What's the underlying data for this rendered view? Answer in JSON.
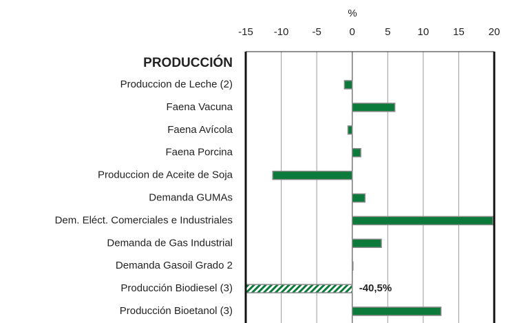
{
  "chart_data": {
    "type": "hbar",
    "x_label": "%",
    "section_label": "PRODUCCIÓN",
    "categories": [
      "Produccion de Leche (2)",
      "Faena Vacuna",
      "Faena Avícola",
      "Faena Porcina",
      "Produccion de Aceite de Soja",
      "Demanda  GUMAs",
      "Dem. Eléct. Comerciales e Industriales",
      "Demanda de Gas Industrial",
      "Demanda Gasoil Grado 2",
      "Producción Biodiesel (3)",
      "Producción Bioetanol (3)"
    ],
    "values": [
      -1.1,
      6.0,
      -0.6,
      1.2,
      -11.2,
      1.8,
      19.8,
      4.1,
      0.1,
      -40.5,
      12.5
    ],
    "value_labels": [
      null,
      null,
      null,
      null,
      null,
      null,
      null,
      null,
      null,
      "-40,5%",
      null
    ],
    "color": "#0b7a3b",
    "xlim": [
      -15,
      20
    ],
    "xticks": [
      -15,
      -10,
      -5,
      0,
      5,
      10,
      15,
      20
    ],
    "grid": true
  }
}
